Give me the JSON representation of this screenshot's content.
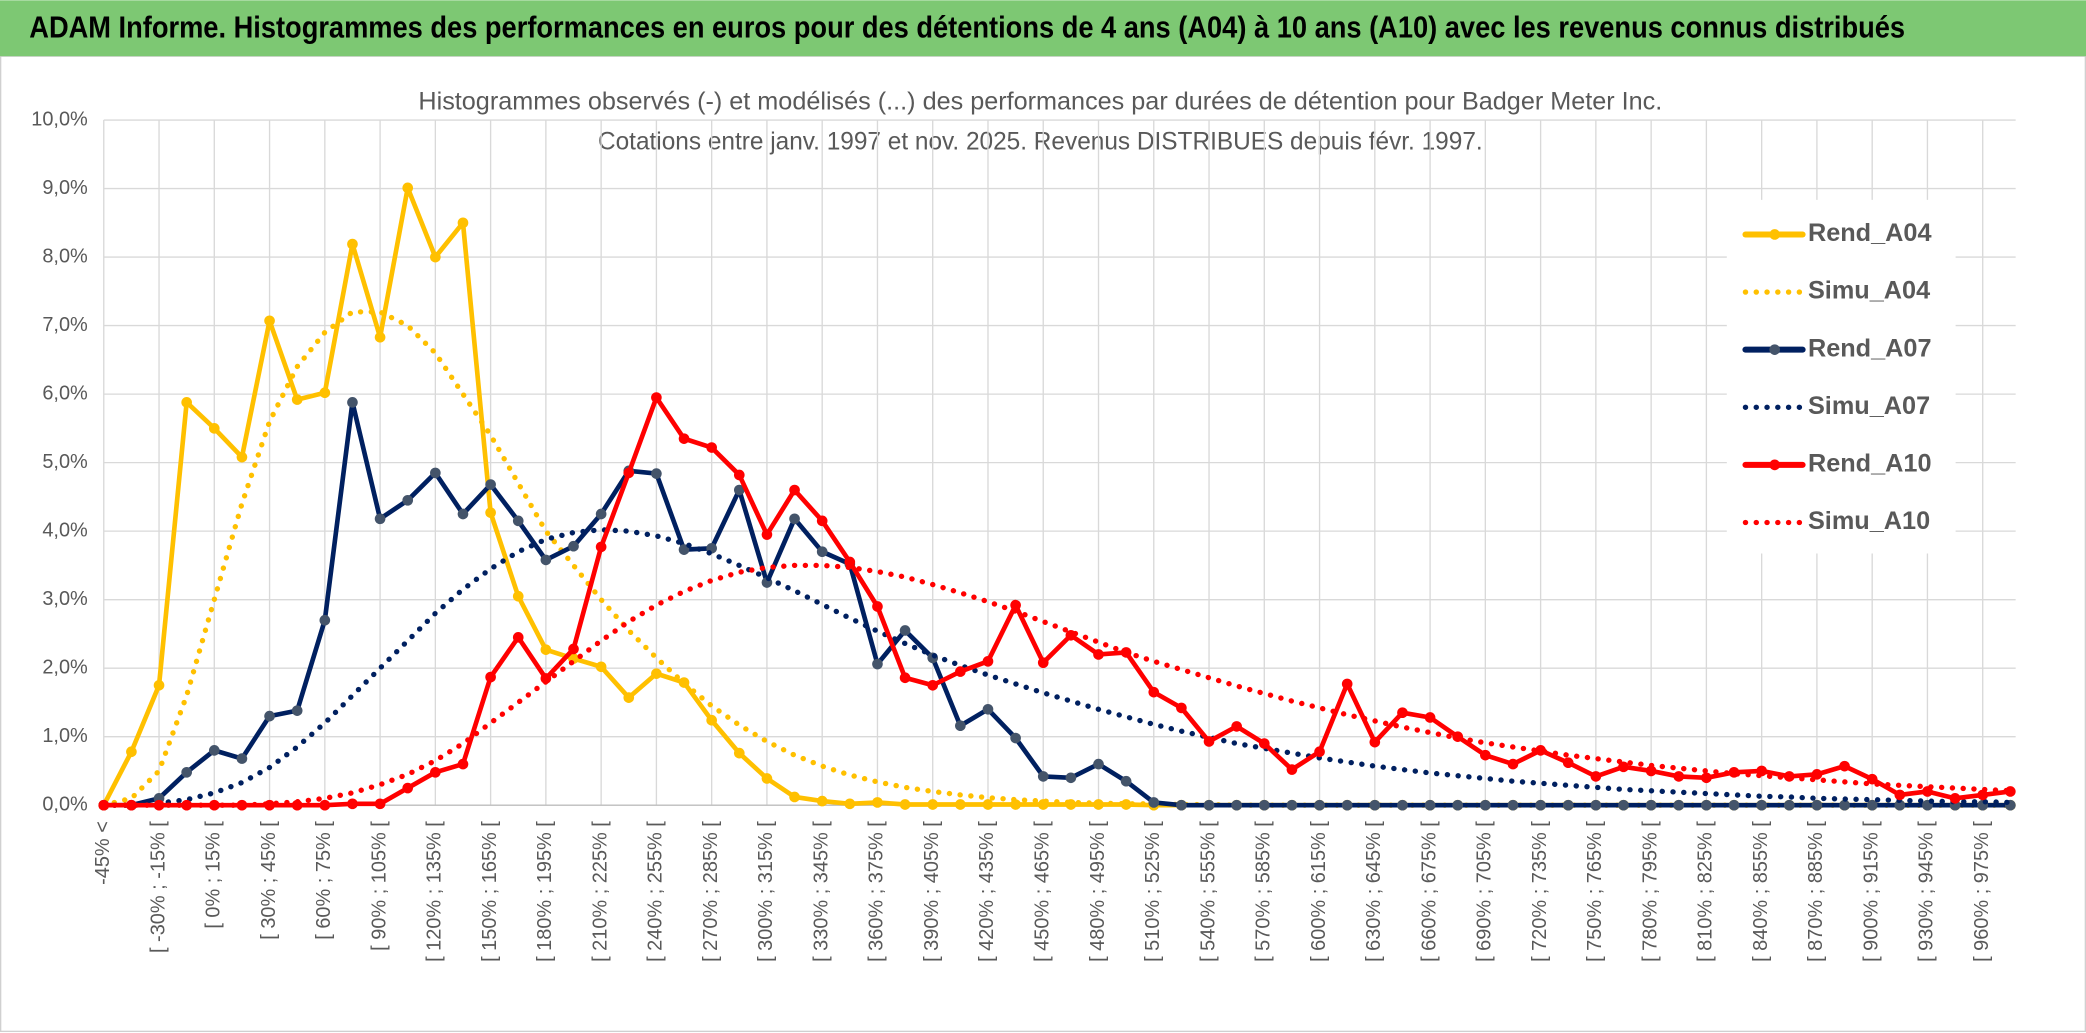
{
  "chart_data": {
    "type": "line",
    "header": "ADAM Informe. Histogrammes des performances en euros pour des détentions de 4 ans (A04) à 10 ans (A10) avec les revenus connus distribués",
    "title": "Histogrammes observés (-) et modélisés (...) des performances par durées de détention pour Badger Meter Inc.",
    "subtitle": "Cotations entre janv. 1997 et nov. 2025. Revenus DISTRIBUES depuis févr. 1997.",
    "categories": [
      "-45% <",
      null,
      "[ -30% ; -15% [",
      null,
      "[ 0% ; 15% [",
      null,
      "[ 30% ; 45% [",
      null,
      "[ 60% ; 75% [",
      null,
      "[ 90% ; 105% [",
      null,
      "[ 120% ; 135% [",
      null,
      "[ 150% ; 165% [",
      null,
      "[ 180% ; 195% [",
      null,
      "[ 210% ; 225% [",
      null,
      "[ 240% ; 255% [",
      null,
      "[ 270% ; 285% [",
      null,
      "[ 300% ; 315% [",
      null,
      "[ 330% ; 345% [",
      null,
      "[ 360% ; 375% [",
      null,
      "[ 390% ; 405% [",
      null,
      "[ 420% ; 435% [",
      null,
      "[ 450% ; 465% [",
      null,
      "[ 480% ; 495% [",
      null,
      "[ 510% ; 525% [",
      null,
      "[ 540% ; 555% [",
      null,
      "[ 570% ; 585% [",
      null,
      "[ 600% ; 615% [",
      null,
      "[ 630% ; 645% [",
      null,
      "[ 660% ; 675% [",
      null,
      "[ 690% ; 705% [",
      null,
      "[ 720% ; 735% [",
      null,
      "[ 750% ; 765% [",
      null,
      "[ 780% ; 795% [",
      null,
      "[ 810% ; 825% [",
      null,
      "[ 840% ; 855% [",
      null,
      "[ 870% ; 885% [",
      null,
      "[ 900% ; 915% [",
      null,
      "[ 930% ; 945% [",
      null,
      "[ 960% ; 975% [",
      null
    ],
    "series": [
      {
        "name": "Rend_A04",
        "color": "#FFC000",
        "dash": "solid",
        "markers": true,
        "marker_color": "#FFC000",
        "values": [
          0,
          0.78,
          1.75,
          5.88,
          5.5,
          5.08,
          7.07,
          5.92,
          6.02,
          8.19,
          6.83,
          9.01,
          8.0,
          8.5,
          4.27,
          3.05,
          2.27,
          2.14,
          2.02,
          1.57,
          1.92,
          1.79,
          1.24,
          0.76,
          0.39,
          0.12,
          0.06,
          0.02,
          0.04,
          0.01,
          0.01,
          0.01,
          0.01,
          0.01,
          0.01,
          0.01,
          0.01,
          0.01,
          0,
          0,
          0,
          0,
          0,
          0,
          0,
          0,
          0,
          0,
          0,
          0,
          0,
          0,
          0,
          0,
          0,
          0,
          0,
          0,
          0,
          0,
          0,
          0,
          0,
          0,
          0,
          0,
          0,
          0,
          0,
          0
        ]
      },
      {
        "name": "Simu_A04",
        "color": "#FFC000",
        "dash": "dotted",
        "markers": false,
        "values": [
          0,
          0.1,
          0.5,
          1.6,
          3.0,
          4.4,
          5.6,
          6.4,
          6.9,
          7.2,
          7.2,
          7.0,
          6.6,
          6.0,
          5.4,
          4.7,
          4.0,
          3.5,
          3.0,
          2.55,
          2.15,
          1.78,
          1.45,
          1.17,
          0.93,
          0.73,
          0.57,
          0.44,
          0.34,
          0.26,
          0.2,
          0.15,
          0.11,
          0.08,
          0.06,
          0.04,
          0.03,
          0.02,
          0.02,
          0.01,
          0.01,
          0,
          0,
          0,
          0,
          0,
          0,
          0,
          0,
          0,
          0,
          0,
          0,
          0,
          0,
          0,
          0,
          0,
          0,
          0,
          0,
          0,
          0,
          0,
          0,
          0,
          0,
          0,
          0,
          0
        ]
      },
      {
        "name": "Rend_A07",
        "color": "#002060",
        "dash": "solid",
        "markers": true,
        "marker_color": "#44546A",
        "values": [
          0,
          0,
          0.1,
          0.48,
          0.8,
          0.68,
          1.3,
          1.38,
          2.7,
          5.88,
          4.18,
          4.45,
          4.85,
          4.25,
          4.68,
          4.15,
          3.58,
          3.78,
          4.25,
          4.88,
          4.84,
          3.73,
          3.75,
          4.6,
          3.25,
          4.18,
          3.7,
          3.52,
          2.06,
          2.55,
          2.15,
          1.16,
          1.4,
          0.98,
          0.42,
          0.4,
          0.6,
          0.35,
          0.04,
          0,
          0,
          0,
          0,
          0,
          0,
          0,
          0,
          0,
          0,
          0,
          0,
          0,
          0,
          0,
          0,
          0,
          0,
          0,
          0,
          0,
          0,
          0,
          0,
          0,
          0,
          0,
          0,
          0,
          0,
          0
        ]
      },
      {
        "name": "Simu_A07",
        "color": "#002060",
        "dash": "dotted",
        "markers": false,
        "values": [
          0,
          0,
          0.03,
          0.08,
          0.18,
          0.33,
          0.55,
          0.85,
          1.2,
          1.6,
          2.0,
          2.4,
          2.8,
          3.15,
          3.45,
          3.7,
          3.88,
          3.98,
          4.02,
          4.0,
          3.93,
          3.82,
          3.67,
          3.5,
          3.32,
          3.13,
          2.93,
          2.73,
          2.54,
          2.36,
          2.19,
          2.04,
          1.9,
          1.77,
          1.64,
          1.52,
          1.4,
          1.29,
          1.18,
          1.08,
          0.99,
          0.9,
          0.83,
          0.76,
          0.69,
          0.63,
          0.57,
          0.52,
          0.47,
          0.43,
          0.39,
          0.35,
          0.32,
          0.29,
          0.26,
          0.23,
          0.21,
          0.19,
          0.17,
          0.15,
          0.13,
          0.12,
          0.1,
          0.09,
          0.08,
          0.07,
          0.06,
          0.05,
          0.05,
          0.04
        ]
      },
      {
        "name": "Rend_A10",
        "color": "#FF0000",
        "dash": "solid",
        "markers": true,
        "marker_color": "#FF0000",
        "values": [
          0,
          0,
          0,
          0,
          0,
          0,
          0,
          0,
          0,
          0.02,
          0.02,
          0.25,
          0.48,
          0.6,
          1.87,
          2.45,
          1.85,
          2.28,
          3.77,
          4.85,
          5.95,
          5.35,
          5.22,
          4.82,
          3.95,
          4.6,
          4.15,
          3.55,
          2.9,
          1.86,
          1.75,
          1.95,
          2.1,
          2.92,
          2.08,
          2.48,
          2.2,
          2.23,
          1.65,
          1.42,
          0.93,
          1.15,
          0.9,
          0.52,
          0.78,
          1.77,
          0.92,
          1.35,
          1.28,
          1.0,
          0.73,
          0.6,
          0.8,
          0.62,
          0.42,
          0.56,
          0.5,
          0.42,
          0.4,
          0.48,
          0.5,
          0.42,
          0.45,
          0.57,
          0.38,
          0.15,
          0.2,
          0.1,
          0.15,
          0.2
        ]
      },
      {
        "name": "Simu_A10",
        "color": "#FF0000",
        "dash": "dotted",
        "markers": false,
        "values": [
          0,
          0,
          0,
          0,
          0,
          0,
          0.02,
          0.05,
          0.1,
          0.18,
          0.3,
          0.45,
          0.65,
          0.9,
          1.2,
          1.5,
          1.8,
          2.1,
          2.4,
          2.68,
          2.92,
          3.12,
          3.28,
          3.4,
          3.47,
          3.5,
          3.5,
          3.47,
          3.41,
          3.33,
          3.22,
          3.1,
          2.97,
          2.83,
          2.68,
          2.53,
          2.38,
          2.23,
          2.1,
          1.98,
          1.86,
          1.74,
          1.63,
          1.52,
          1.42,
          1.32,
          1.23,
          1.14,
          1.06,
          0.98,
          0.91,
          0.85,
          0.79,
          0.73,
          0.68,
          0.63,
          0.58,
          0.54,
          0.5,
          0.46,
          0.43,
          0.4,
          0.37,
          0.34,
          0.31,
          0.29,
          0.27,
          0.25,
          0.23,
          0.21
        ]
      }
    ],
    "ylim": [
      0,
      10
    ],
    "yticks": [
      {
        "value": 0,
        "label": "0,0%"
      },
      {
        "value": 1,
        "label": "1,0%"
      },
      {
        "value": 2,
        "label": "2,0%"
      },
      {
        "value": 3,
        "label": "3,0%"
      },
      {
        "value": 4,
        "label": "4,0%"
      },
      {
        "value": 5,
        "label": "5,0%"
      },
      {
        "value": 6,
        "label": "6,0%"
      },
      {
        "value": 7,
        "label": "7,0%"
      },
      {
        "value": 8,
        "label": "8,0%"
      },
      {
        "value": 9,
        "label": "9,0%"
      },
      {
        "value": 10,
        "label": "10,0%"
      }
    ],
    "grid": true,
    "xgrid": true,
    "legend": "right"
  }
}
